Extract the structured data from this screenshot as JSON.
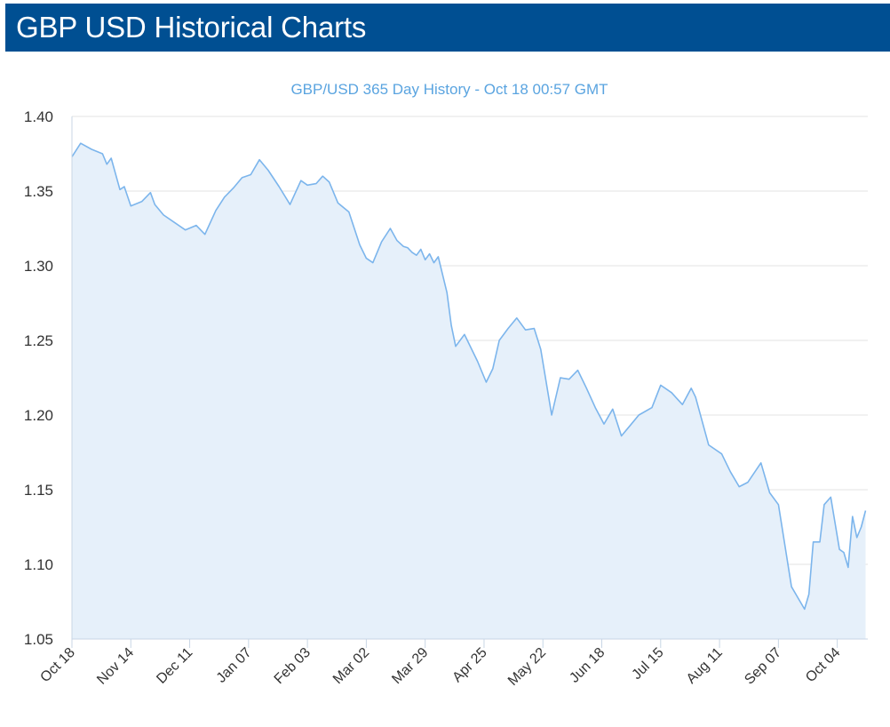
{
  "header": {
    "title": "GBP USD Historical Charts"
  },
  "colors": {
    "header_bg": "#004f92",
    "line": "#7cb5ec",
    "area": "#e6f0fa",
    "title": "#5aa4e0"
  },
  "chart_data": {
    "type": "area",
    "title": "GBP/USD 365 Day History - Oct 18 00:57 GMT",
    "xlabel": "",
    "ylabel": "",
    "ylim": [
      1.05,
      1.4
    ],
    "yticks": [
      "1.05",
      "1.10",
      "1.15",
      "1.20",
      "1.25",
      "1.30",
      "1.35",
      "1.40"
    ],
    "xticks": [
      "Oct 18",
      "Nov 14",
      "Dec 11",
      "Jan 07",
      "Feb 03",
      "Mar 02",
      "Mar 29",
      "Apr 25",
      "May 22",
      "Jun 18",
      "Jul 15",
      "Aug 11",
      "Sep 07",
      "Oct 04"
    ],
    "x_days": [
      0,
      4,
      9,
      14,
      16,
      18,
      22,
      24,
      27,
      32,
      36,
      38,
      42,
      47,
      52,
      57,
      61,
      66,
      70,
      74,
      78,
      82,
      86,
      90,
      95,
      100,
      105,
      108,
      112,
      115,
      118,
      122,
      127,
      132,
      135,
      138,
      142,
      146,
      149,
      152,
      154,
      156,
      158,
      160,
      162,
      164,
      166,
      168,
      172,
      174,
      176,
      180,
      186,
      190,
      193,
      196,
      200,
      204,
      208,
      212,
      215,
      220,
      224,
      228,
      232,
      236,
      240,
      244,
      248,
      250,
      252,
      256,
      260,
      266,
      270,
      275,
      280,
      284,
      286,
      292,
      298,
      302,
      306,
      310,
      316,
      320,
      324,
      330,
      334,
      336,
      338,
      340,
      343,
      345,
      348,
      352,
      354,
      356,
      358,
      360,
      362,
      364
    ],
    "values": [
      1.373,
      1.382,
      1.378,
      1.375,
      1.368,
      1.372,
      1.351,
      1.353,
      1.34,
      1.343,
      1.349,
      1.341,
      1.334,
      1.329,
      1.324,
      1.327,
      1.321,
      1.337,
      1.346,
      1.352,
      1.359,
      1.361,
      1.371,
      1.364,
      1.353,
      1.341,
      1.357,
      1.354,
      1.355,
      1.36,
      1.356,
      1.342,
      1.336,
      1.314,
      1.305,
      1.302,
      1.316,
      1.325,
      1.317,
      1.313,
      1.312,
      1.309,
      1.307,
      1.311,
      1.304,
      1.308,
      1.302,
      1.306,
      1.282,
      1.26,
      1.246,
      1.254,
      1.236,
      1.222,
      1.231,
      1.25,
      1.258,
      1.265,
      1.257,
      1.258,
      1.244,
      1.2,
      1.225,
      1.224,
      1.23,
      1.218,
      1.205,
      1.194,
      1.204,
      1.195,
      1.186,
      1.193,
      1.2,
      1.205,
      1.22,
      1.215,
      1.207,
      1.218,
      1.212,
      1.18,
      1.174,
      1.162,
      1.152,
      1.155,
      1.168,
      1.148,
      1.14,
      1.085,
      1.075,
      1.07,
      1.08,
      1.115,
      1.115,
      1.14,
      1.145,
      1.11,
      1.108,
      1.098,
      1.132,
      1.118,
      1.125,
      1.136
    ]
  }
}
